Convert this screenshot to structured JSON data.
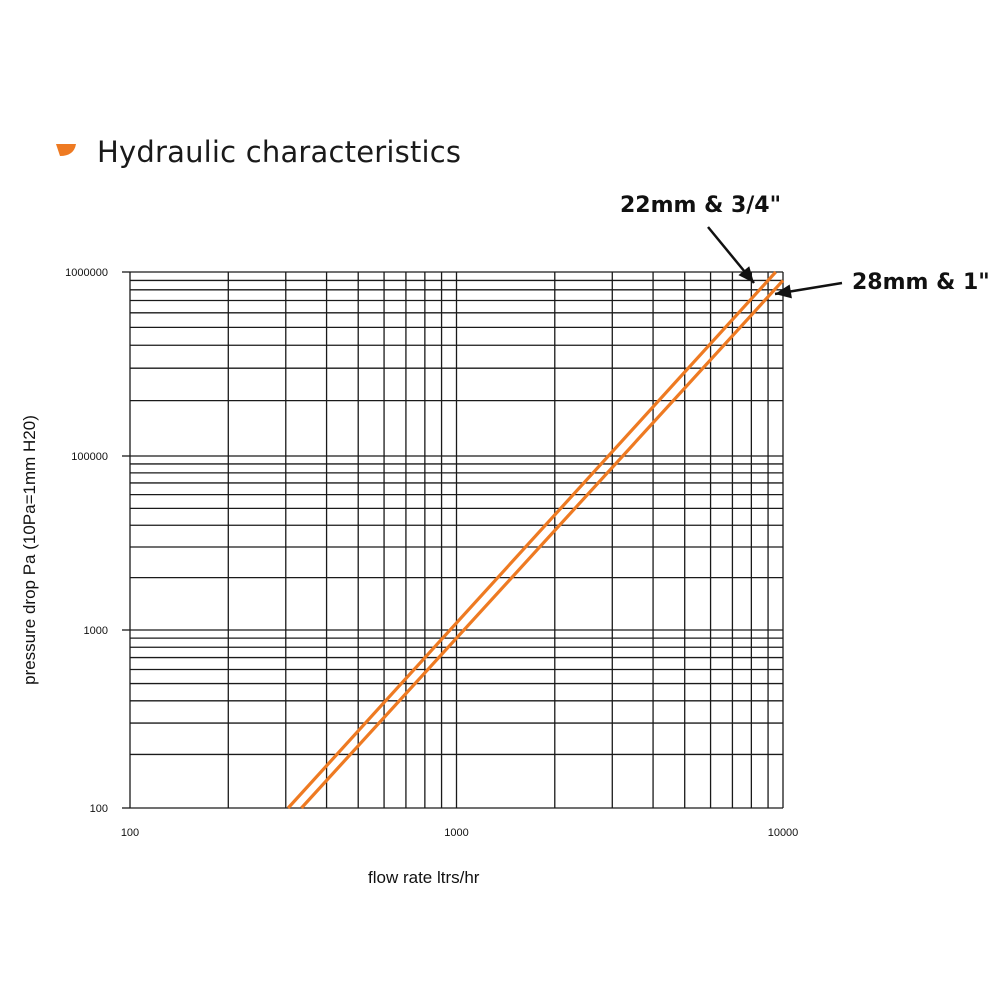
{
  "title": "Hydraulic characteristics",
  "colors": {
    "accent": "#ee7a22",
    "grid": "#1a1a1a"
  },
  "chart_data": {
    "type": "line",
    "xscale": "log",
    "yscale": "log",
    "xlim": [
      100,
      10000
    ],
    "grid": true,
    "x_ticks": [
      {
        "label": "100",
        "pos": 100
      },
      {
        "label": "1000",
        "pos": 1000
      },
      {
        "label": "10000",
        "pos": 10000
      }
    ],
    "y_ticks": [
      {
        "label": "100",
        "pos": 100
      },
      {
        "label": "1000",
        "pos": 1000
      },
      {
        "label": "100000",
        "pos": 100000
      },
      {
        "label": "1000000",
        "pos": 1000000
      }
    ],
    "xlabel": "flow rate ltrs/hr",
    "ylabel": "pressure drop Pa (10Pa=1mm H20)",
    "series": [
      {
        "name": "22mm & 3/4\"",
        "x": [
          305,
          9500
        ],
        "y": [
          100,
          1000000
        ]
      },
      {
        "name": "28mm & 1\"",
        "x": [
          335,
          10000
        ],
        "y": [
          100,
          900000
        ]
      }
    ]
  }
}
